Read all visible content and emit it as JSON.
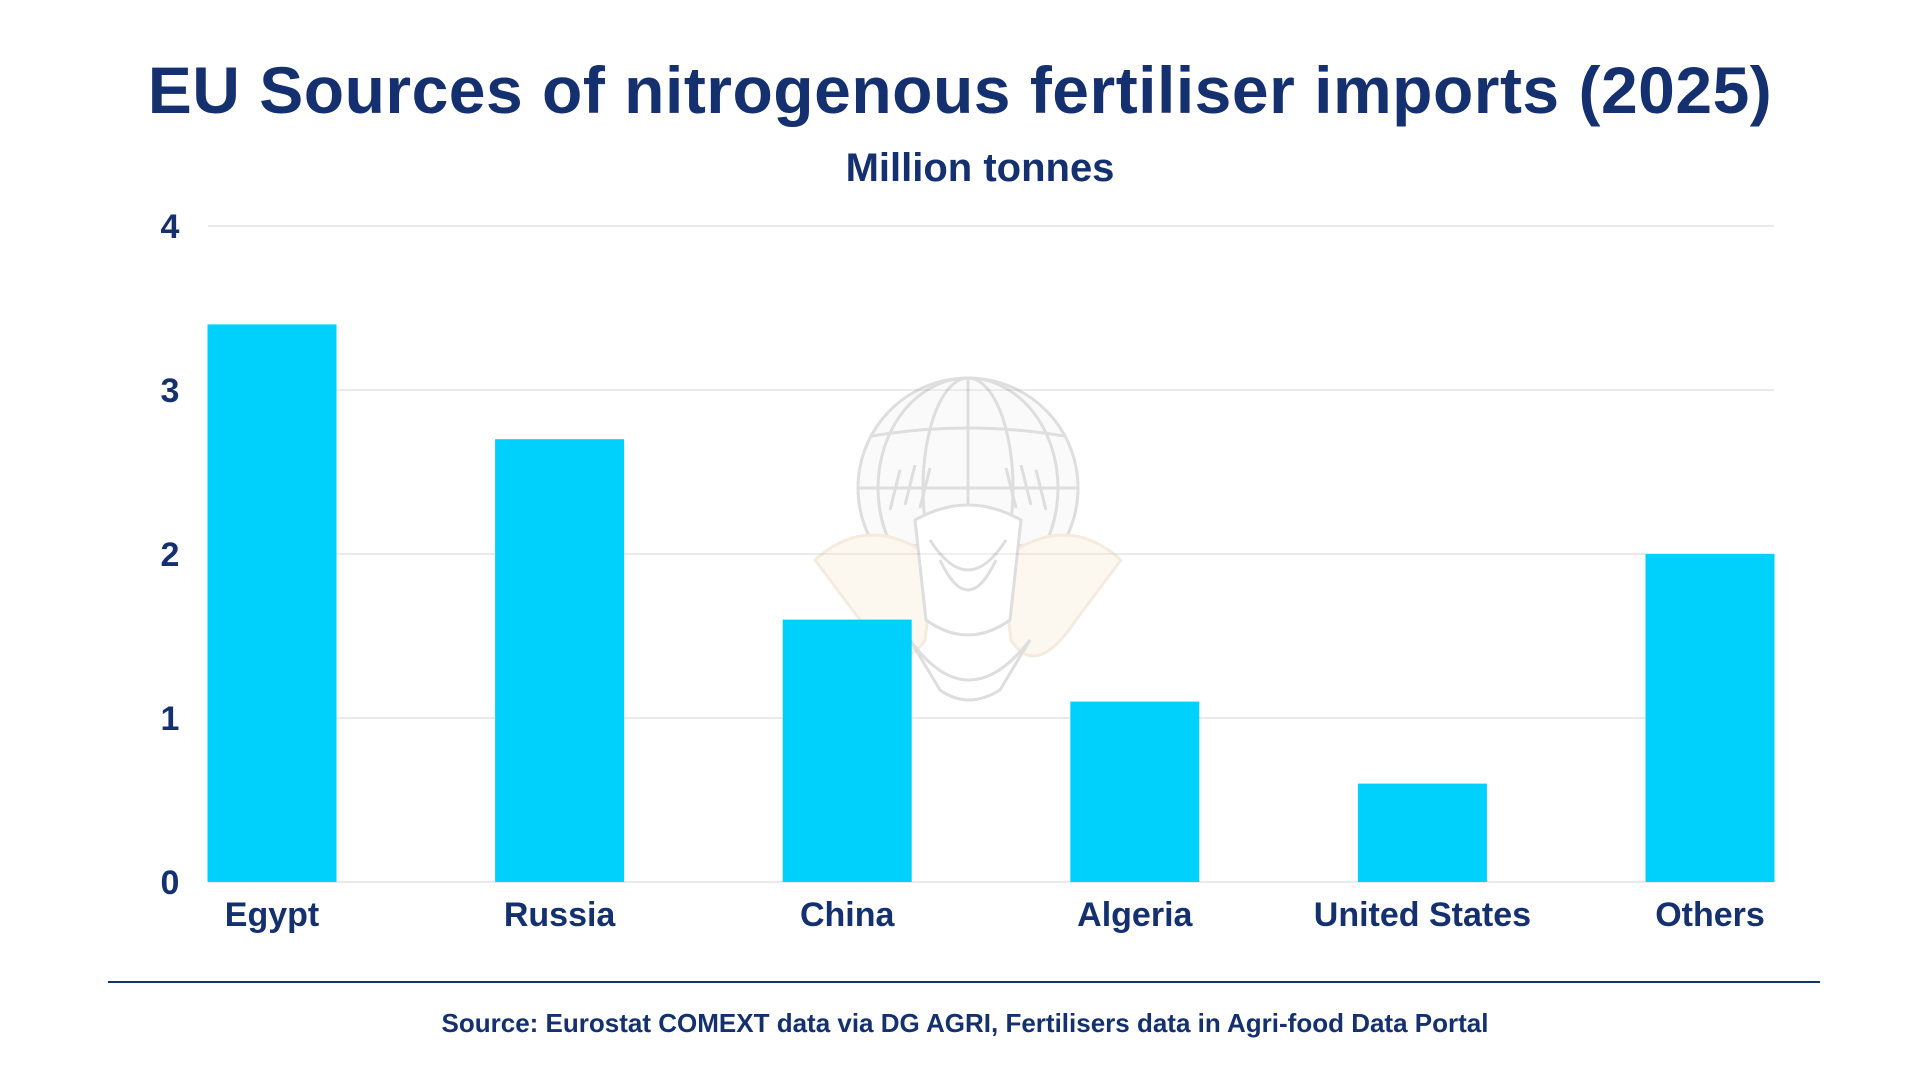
{
  "chart_data": {
    "type": "bar",
    "title": "EU Sources of nitrogenous fertiliser imports (2025)",
    "subtitle": "Million tonnes",
    "categories": [
      "Egypt",
      "Russia",
      "China",
      "Algeria",
      "United States",
      "Others"
    ],
    "values": [
      3.4,
      2.7,
      1.6,
      1.1,
      0.6,
      2.0
    ],
    "ylim": [
      0,
      4
    ],
    "yticks": [
      "0",
      "1",
      "2",
      "3",
      "4"
    ],
    "grid": true,
    "bar_color": "#00d0fc",
    "source": "Source: Eurostat COMEXT data via DG AGRI, Fertilisers data in Agri-food Data Portal"
  },
  "colors": {
    "text": "#14306e",
    "grid": "#e4e4e4",
    "watermark": "#b9b9b9"
  },
  "watermark": {
    "icon": "atlas-globe-logo-icon"
  }
}
